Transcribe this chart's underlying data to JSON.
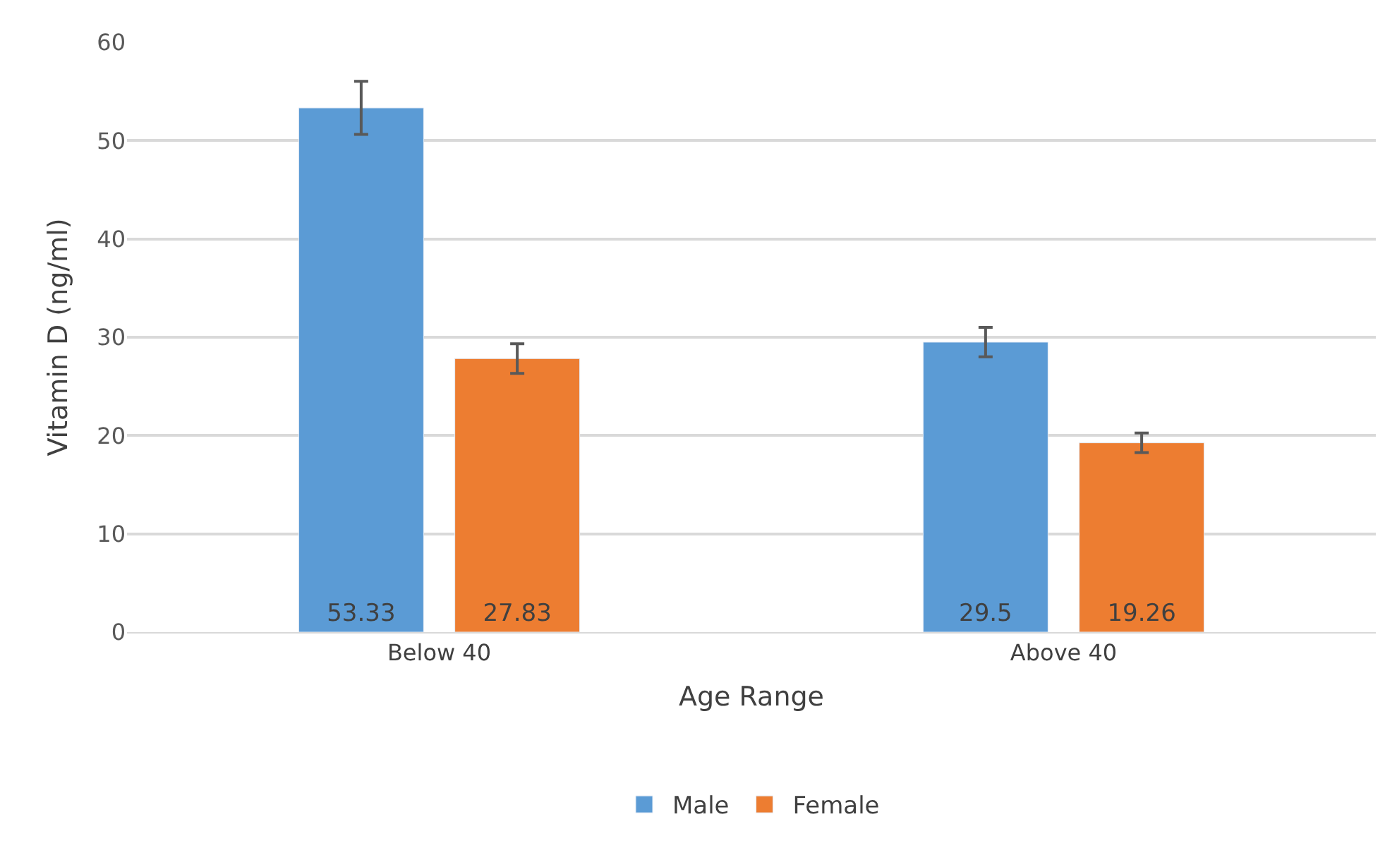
{
  "chart_data": {
    "type": "bar",
    "xlabel": "Age Range",
    "ylabel": "Vitamin D (ng/ml)",
    "categories": [
      "Below 40",
      "Above 40"
    ],
    "series": [
      {
        "name": "Male",
        "color": "#5b9bd5",
        "values": [
          53.33,
          29.5
        ],
        "errors": [
          2.7,
          1.5
        ]
      },
      {
        "name": "Female",
        "color": "#ed7d31",
        "values": [
          27.83,
          19.26
        ],
        "errors": [
          1.5,
          1.0
        ]
      }
    ],
    "ylim": [
      0,
      60
    ],
    "yticks": [
      0,
      10,
      20,
      30,
      40,
      50,
      60
    ],
    "grid": "y",
    "legend": "bottom",
    "data_labels": true
  }
}
